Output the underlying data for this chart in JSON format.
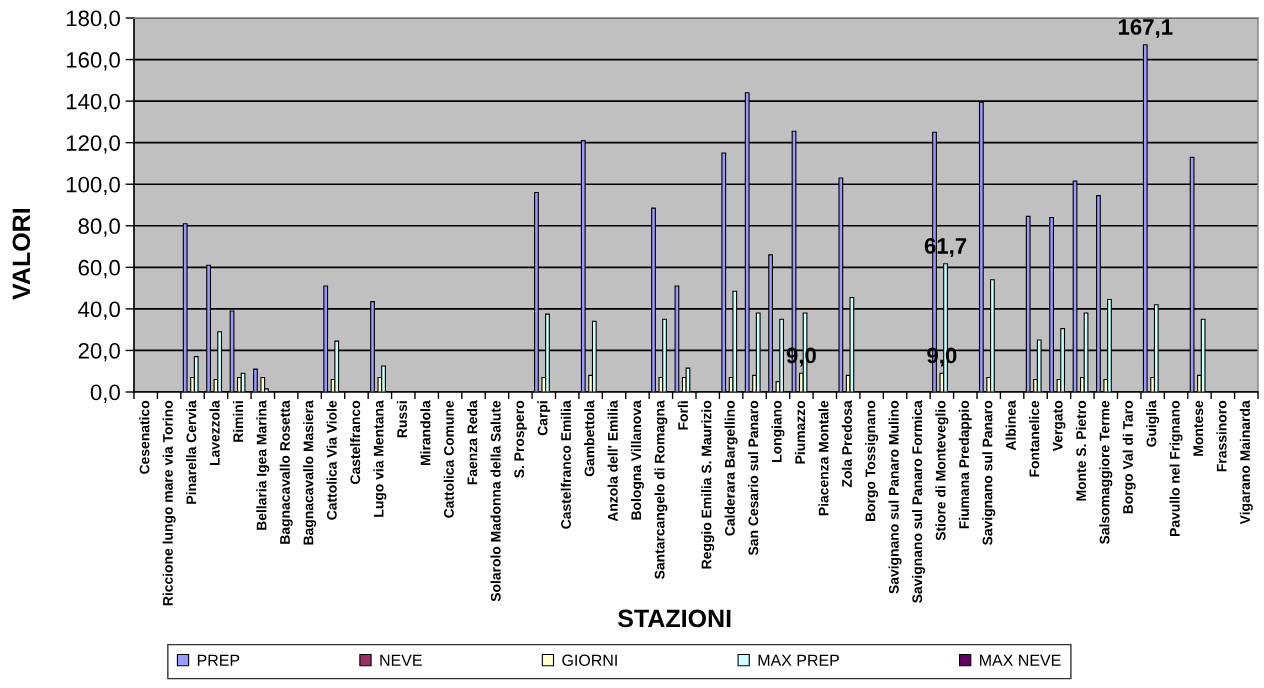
{
  "chart_data": {
    "type": "bar",
    "xlabel": "STAZIONI",
    "ylabel": "VALORI",
    "categories": [
      "Cesenatico",
      "Riccione lungo mare via Torino",
      "Pinarella Cervia",
      "Lavezzola",
      "Rimini",
      "Bellaria Igea Marina",
      "Bagnacavallo Rosetta",
      "Bagnacavallo Masiera",
      "Cattolica Via Viole",
      "Castelfranco",
      "Lugo via Mentana",
      "Russi",
      "Mirandola",
      "Cattolica Comune",
      "Faenza Reda",
      "Solarolo Madonna della Salute",
      "S. Prospero",
      "Carpi",
      "Castelfranco Emilia",
      "Gambettola",
      "Anzola dell' Emilia",
      "Bologna Villanova",
      "Santarcangelo di Romagna",
      "Forlì",
      "Reggio Emilia S. Maurizio",
      "Calderara Bargellino",
      "San Cesario sul Panaro",
      "Longiano",
      "Piumazzo",
      "Piacenza Montale",
      "Zola Predosa",
      "Borgo Tossignano",
      "Savignano sul Panaro Mulino",
      "Savignano sul Panaro Formica",
      "Stiore di Monteveglio",
      "Fiumana Predappio",
      "Savignano sul Panaro",
      "Albinea",
      "Fontanelice",
      "Vergato",
      "Monte S. Pietro",
      "Salsomaggiore Terme",
      "Borgo Val di Taro",
      "Guiglia",
      "Pavullo nel Frignano",
      "Montese",
      "Frassinoro",
      "Vigarano Mainarda"
    ],
    "series": [
      {
        "name": "PREP",
        "color": "#9999ff",
        "values": [
          null,
          null,
          81,
          61,
          39,
          11,
          null,
          null,
          51,
          null,
          43.5,
          null,
          null,
          null,
          null,
          null,
          null,
          96,
          null,
          121,
          null,
          null,
          88.5,
          51,
          null,
          115,
          144,
          66,
          125.5,
          null,
          103,
          null,
          null,
          null,
          125,
          null,
          139.5,
          null,
          84.5,
          84,
          101.5,
          94.5,
          null,
          167.1,
          null,
          113,
          null,
          null
        ],
        "value_labels": [
          null,
          null,
          null,
          null,
          null,
          null,
          null,
          null,
          null,
          null,
          null,
          null,
          null,
          null,
          null,
          null,
          null,
          null,
          null,
          null,
          null,
          null,
          null,
          null,
          null,
          null,
          null,
          null,
          null,
          null,
          null,
          null,
          null,
          null,
          null,
          null,
          null,
          null,
          null,
          null,
          null,
          null,
          null,
          "167,1",
          null,
          null,
          null,
          null
        ]
      },
      {
        "name": "NEVE",
        "color": "#993366",
        "values": [
          null,
          null,
          null,
          null,
          null,
          null,
          null,
          null,
          null,
          null,
          null,
          null,
          null,
          null,
          null,
          null,
          null,
          null,
          null,
          null,
          null,
          null,
          null,
          null,
          null,
          null,
          null,
          null,
          null,
          null,
          null,
          null,
          null,
          null,
          null,
          null,
          null,
          null,
          null,
          null,
          null,
          null,
          null,
          null,
          null,
          null,
          null,
          null
        ]
      },
      {
        "name": "GIORNI",
        "color": "#ffffcc",
        "values": [
          null,
          null,
          7,
          6,
          7,
          7,
          null,
          null,
          6,
          null,
          7,
          null,
          null,
          null,
          null,
          null,
          null,
          7,
          null,
          8,
          null,
          null,
          7,
          7,
          null,
          7,
          8,
          5,
          9,
          null,
          8,
          null,
          null,
          null,
          9,
          null,
          7,
          null,
          6,
          6,
          7,
          6,
          null,
          7,
          null,
          8,
          null,
          null
        ],
        "value_labels": [
          null,
          null,
          null,
          null,
          null,
          null,
          null,
          null,
          null,
          null,
          null,
          null,
          null,
          null,
          null,
          null,
          null,
          null,
          null,
          null,
          null,
          null,
          null,
          null,
          null,
          null,
          null,
          null,
          "9,0",
          null,
          null,
          null,
          null,
          null,
          "9,0",
          null,
          null,
          null,
          null,
          null,
          null,
          null,
          null,
          null,
          null,
          null,
          null,
          null
        ]
      },
      {
        "name": "MAX PREP",
        "color": "#ccffff",
        "values": [
          null,
          null,
          17,
          29,
          9,
          1.5,
          null,
          null,
          24.5,
          null,
          12.5,
          null,
          null,
          null,
          null,
          null,
          null,
          37.5,
          null,
          34,
          null,
          null,
          35,
          11.5,
          null,
          48.5,
          38,
          35,
          38,
          null,
          45.5,
          null,
          null,
          null,
          61.7,
          null,
          54,
          null,
          25,
          30.5,
          38,
          44.5,
          null,
          42,
          null,
          35,
          null,
          null
        ],
        "value_labels": [
          null,
          null,
          null,
          null,
          null,
          null,
          null,
          null,
          null,
          null,
          null,
          null,
          null,
          null,
          null,
          null,
          null,
          null,
          null,
          null,
          null,
          null,
          null,
          null,
          null,
          null,
          null,
          null,
          null,
          null,
          null,
          null,
          null,
          null,
          "61,7",
          null,
          null,
          null,
          null,
          null,
          null,
          null,
          null,
          null,
          null,
          null,
          null,
          null
        ]
      },
      {
        "name": "MAX NEVE",
        "color": "#660066",
        "values": [
          null,
          null,
          null,
          null,
          null,
          null,
          null,
          null,
          null,
          null,
          null,
          null,
          null,
          null,
          null,
          null,
          null,
          null,
          null,
          null,
          null,
          null,
          null,
          null,
          null,
          null,
          null,
          null,
          null,
          null,
          null,
          null,
          null,
          null,
          null,
          null,
          null,
          null,
          null,
          null,
          null,
          null,
          null,
          null,
          null,
          null,
          null,
          null
        ]
      }
    ],
    "ylim": [
      0,
      180
    ],
    "yticks": [
      {
        "value": 0,
        "label": "0,0"
      },
      {
        "value": 20,
        "label": "20,0"
      },
      {
        "value": 40,
        "label": "40,0"
      },
      {
        "value": 60,
        "label": "60,0"
      },
      {
        "value": 80,
        "label": "80,0"
      },
      {
        "value": 100,
        "label": "100,0"
      },
      {
        "value": 120,
        "label": "120,0"
      },
      {
        "value": 140,
        "label": "140,0"
      },
      {
        "value": 160,
        "label": "160,0"
      },
      {
        "value": 180,
        "label": "180,0"
      }
    ],
    "grid": "y",
    "legend": "bottom"
  }
}
